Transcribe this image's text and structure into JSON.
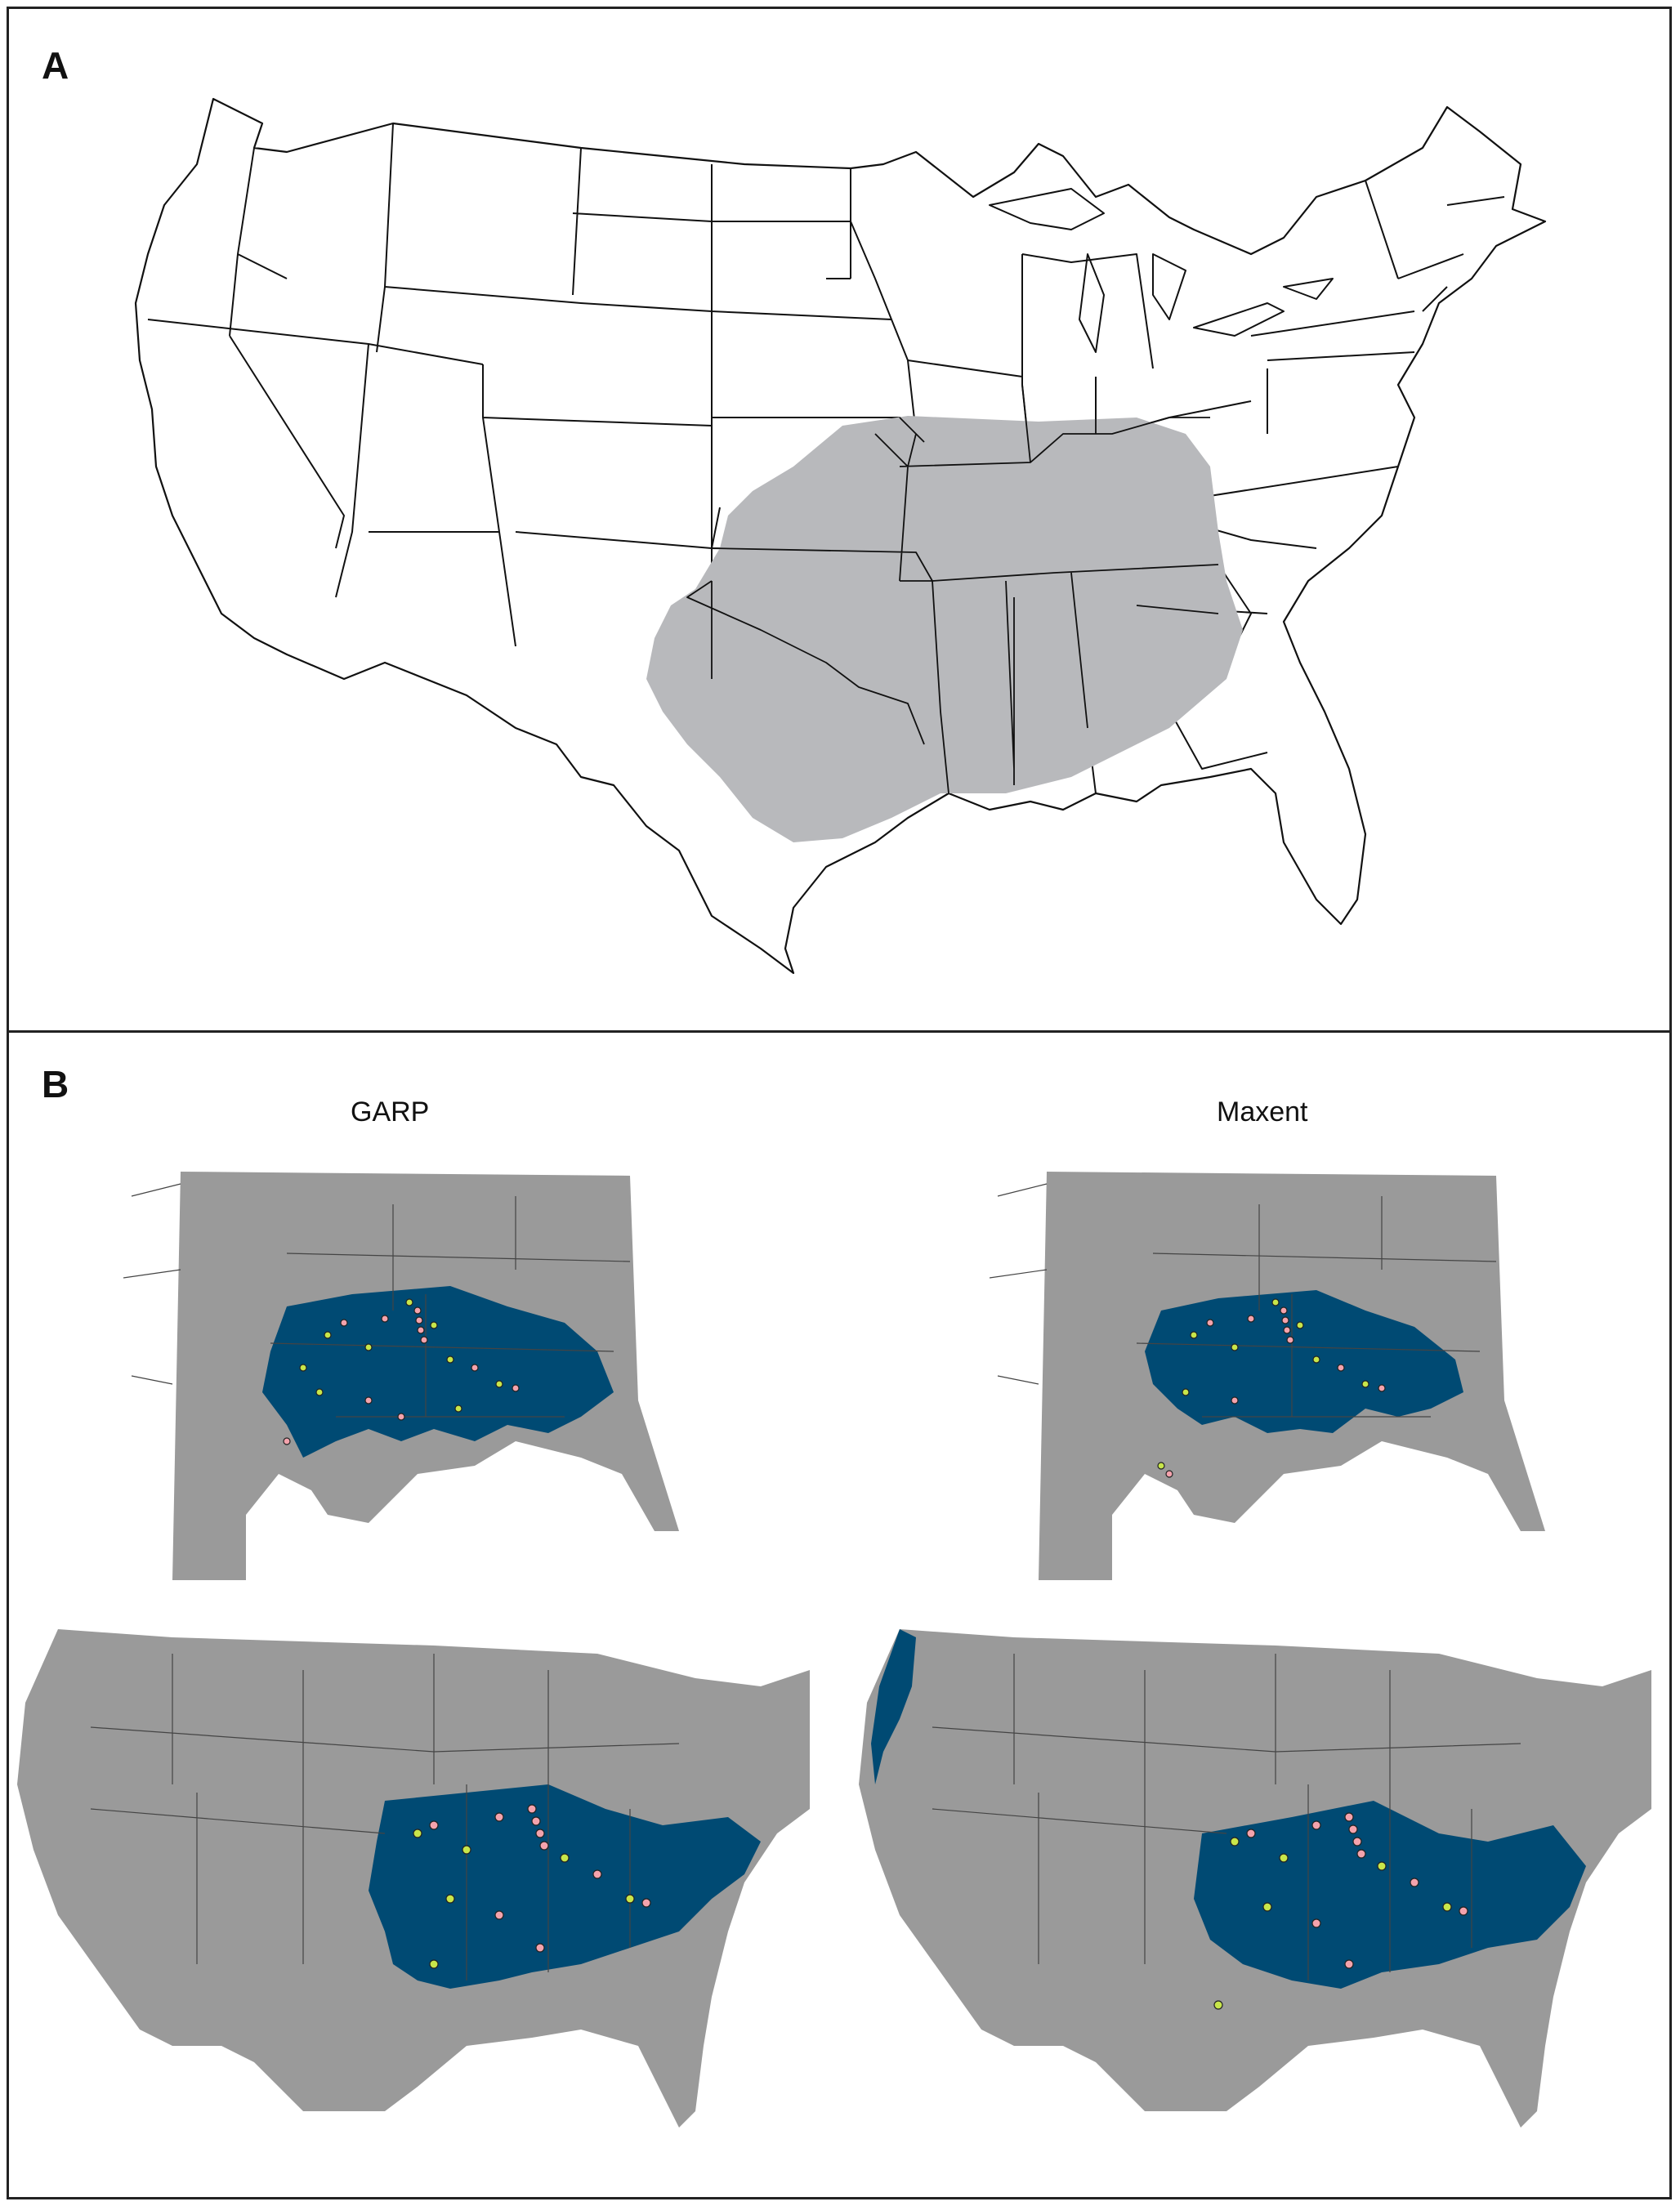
{
  "figure": {
    "panel_a": {
      "label": "A"
    },
    "panel_b": {
      "label": "B",
      "model_titles": [
        "GARP",
        "Maxent"
      ]
    }
  },
  "colors": {
    "range_fill": "#b8b9bc",
    "background_region": "#9a9a9a",
    "suitable_area": "#004a73",
    "points_yellow": "#c8e64a",
    "points_pink": "#f4a3ad"
  }
}
